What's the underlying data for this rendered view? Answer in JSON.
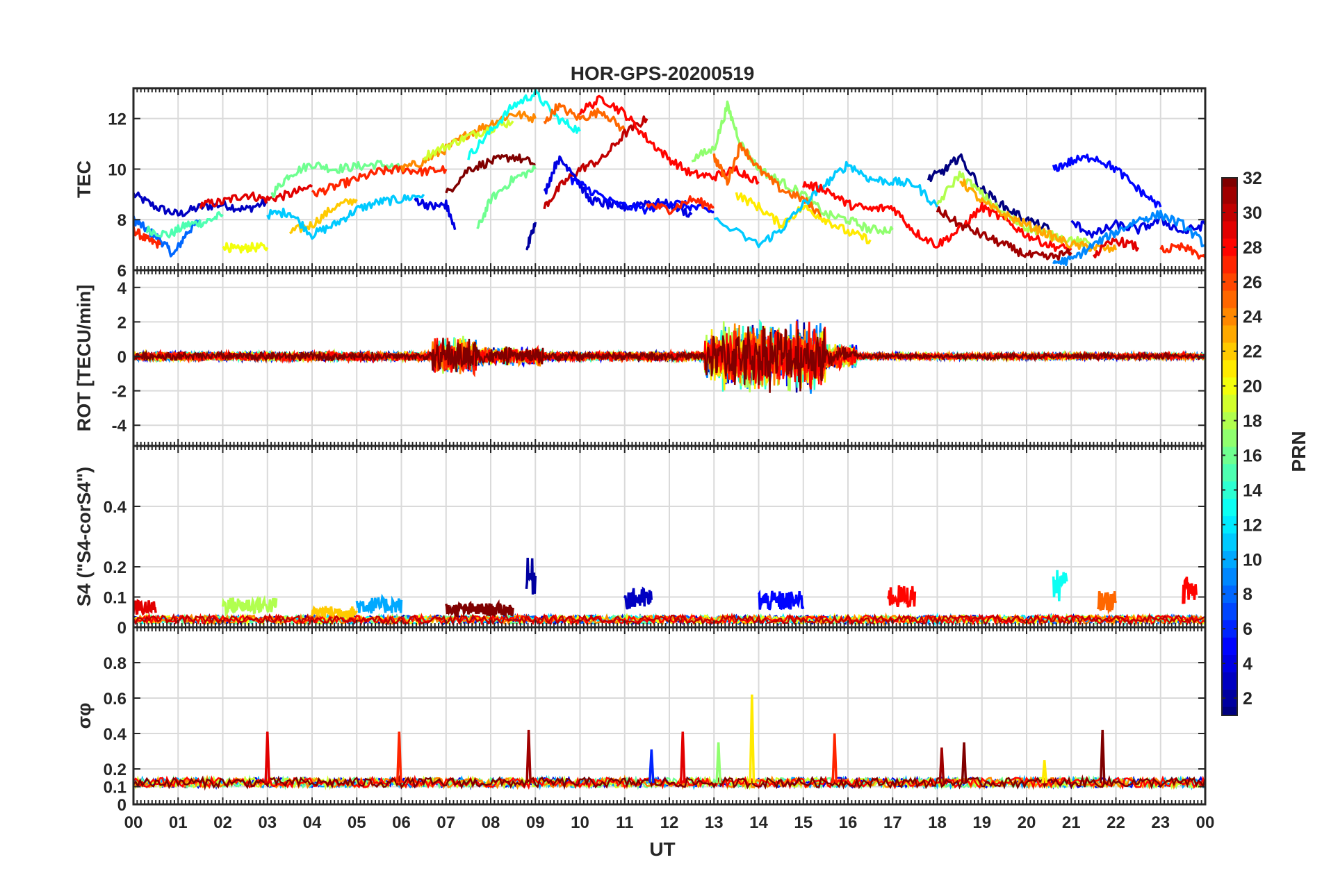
{
  "chart_data": {
    "type": "line",
    "title": "HOR-GPS-20200519",
    "xlabel": "UT",
    "x_range": [
      0,
      24
    ],
    "x_tick_labels": [
      "00",
      "01",
      "02",
      "03",
      "04",
      "05",
      "06",
      "07",
      "08",
      "09",
      "10",
      "11",
      "12",
      "13",
      "14",
      "15",
      "16",
      "17",
      "18",
      "19",
      "20",
      "21",
      "22",
      "23",
      "00"
    ],
    "grid": true,
    "colorbar": {
      "label": "PRN",
      "range": [
        1,
        32
      ],
      "tick_labels": [
        "2",
        "4",
        "6",
        "8",
        "10",
        "12",
        "14",
        "16",
        "18",
        "20",
        "22",
        "24",
        "26",
        "28",
        "30",
        "32"
      ],
      "colormap": "jet",
      "placement": "right"
    },
    "panels": [
      {
        "name": "tec",
        "ylabel": "TEC",
        "ylim": [
          6,
          13.2
        ],
        "y_tick_labels": [
          "6",
          "8",
          "10",
          "12"
        ],
        "series": [
          {
            "prn": 3,
            "x": [
              0,
              0.5,
              1,
              1.5,
              2,
              2.5,
              3
            ],
            "y": [
              9.0,
              8.5,
              8.2,
              8.5,
              8.6,
              8.4,
              8.7
            ]
          },
          {
            "prn": 8,
            "x": [
              0,
              0.3,
              0.6,
              0.9,
              1.2,
              1.5
            ],
            "y": [
              8.0,
              7.6,
              7.2,
              6.6,
              7.5,
              8.0
            ]
          },
          {
            "prn": 15,
            "x": [
              0.3,
              0.8,
              1.2,
              1.6,
              2.0
            ],
            "y": [
              7.6,
              7.4,
              7.8,
              7.9,
              8.2
            ]
          },
          {
            "prn": 27,
            "x": [
              0,
              0.3,
              0.6
            ],
            "y": [
              7.6,
              7.2,
              7.0
            ]
          },
          {
            "prn": 29,
            "x": [
              1.5,
              2,
              2.5,
              3,
              3.5,
              4
            ],
            "y": [
              8.6,
              8.7,
              9.0,
              8.8,
              9.0,
              9.3
            ]
          },
          {
            "prn": 20,
            "x": [
              2,
              2.3,
              2.6,
              3.0
            ],
            "y": [
              7.0,
              6.8,
              6.9,
              6.9
            ]
          },
          {
            "prn": 16,
            "x": [
              3.1,
              3.5,
              4.0,
              4.5,
              5.0,
              5.5,
              6.0
            ],
            "y": [
              9.0,
              9.8,
              10.2,
              10.0,
              10.1,
              10.2,
              10.0
            ]
          },
          {
            "prn": 22,
            "x": [
              3.5,
              4.0,
              4.5,
              5.0
            ],
            "y": [
              7.5,
              7.8,
              8.5,
              8.8
            ]
          },
          {
            "prn": 11,
            "x": [
              3.0,
              3.5,
              4.0,
              4.5,
              5.0,
              5.5,
              6.0,
              6.5
            ],
            "y": [
              8.2,
              8.3,
              7.4,
              7.8,
              8.4,
              8.7,
              8.8,
              9.0
            ]
          },
          {
            "prn": 27,
            "x": [
              4.0,
              4.5,
              5.0,
              5.5,
              6.0,
              6.5,
              7.0
            ],
            "y": [
              9.0,
              9.3,
              9.6,
              9.9,
              10.0,
              9.9,
              10.0
            ]
          },
          {
            "prn": 24,
            "x": [
              6.0,
              6.5,
              7.0,
              7.5,
              8.0,
              8.5,
              9.0
            ],
            "y": [
              10.0,
              10.3,
              10.8,
              11.4,
              11.8,
              12.2,
              12.0
            ]
          },
          {
            "prn": 19,
            "x": [
              6.5,
              7.0,
              7.5,
              8.0,
              8.5
            ],
            "y": [
              10.5,
              10.9,
              11.3,
              11.6,
              11.9
            ]
          },
          {
            "prn": 13,
            "x": [
              7.5,
              8.0,
              8.5,
              9.0,
              9.5,
              10.0
            ],
            "y": [
              10.5,
              11.5,
              12.5,
              13.0,
              12.0,
              11.5
            ]
          },
          {
            "prn": 32,
            "x": [
              7.0,
              7.5,
              8.0,
              8.5,
              9.0
            ],
            "y": [
              9.0,
              10.0,
              10.3,
              10.5,
              10.2
            ]
          },
          {
            "prn": 16,
            "x": [
              7.7,
              8.0,
              8.5,
              9.0
            ],
            "y": [
              7.6,
              8.8,
              9.6,
              10.0
            ]
          },
          {
            "prn": 4,
            "x": [
              6.3,
              6.7,
              7.0,
              7.2
            ],
            "y": [
              8.8,
              8.5,
              8.6,
              7.6
            ]
          },
          {
            "prn": 25,
            "x": [
              9.2,
              9.5,
              10.0,
              10.5,
              11.0
            ],
            "y": [
              11.8,
              12.5,
              12.0,
              12.3,
              11.5
            ]
          },
          {
            "prn": 30,
            "x": [
              9.2,
              9.6,
              10.0,
              10.5,
              11.0,
              11.5
            ],
            "y": [
              8.5,
              9.4,
              10.0,
              10.4,
              11.4,
              12.0
            ]
          },
          {
            "prn": 28,
            "x": [
              10.0,
              10.5,
              11.0,
              11.5,
              12.0,
              12.5,
              13.0,
              13.5,
              14.0
            ],
            "y": [
              12.3,
              12.8,
              12.2,
              11.2,
              10.4,
              9.8,
              9.7,
              10.0,
              9.5
            ]
          },
          {
            "prn": 4,
            "x": [
              9.2,
              9.5,
              9.8,
              10.2,
              10.6,
              11.0,
              11.5,
              12.0,
              12.5
            ],
            "y": [
              9.0,
              10.4,
              10.0,
              8.8,
              8.6,
              8.5,
              8.7,
              8.6,
              8.2
            ]
          },
          {
            "prn": 2,
            "x": [
              8.8,
              9.0
            ],
            "y": [
              6.8,
              7.9
            ]
          },
          {
            "prn": 5,
            "x": [
              9.8,
              10.2,
              10.8,
              11.5,
              12.0,
              12.5,
              13.0
            ],
            "y": [
              9.6,
              9.2,
              8.6,
              8.4,
              8.7,
              8.5,
              8.3
            ]
          },
          {
            "prn": 27,
            "x": [
              11.5,
              12.0,
              12.5,
              13.0
            ],
            "y": [
              8.6,
              8.4,
              8.8,
              8.5
            ]
          },
          {
            "prn": 17,
            "x": [
              12.5,
              13.0,
              13.3,
              13.6,
              14.0,
              14.5,
              15.0,
              15.5,
              16.0,
              16.5,
              17.0
            ],
            "y": [
              10.4,
              10.8,
              12.5,
              11.0,
              10.0,
              9.5,
              9.0,
              8.2,
              8.0,
              7.6,
              7.6
            ]
          },
          {
            "prn": 25,
            "x": [
              13.0,
              13.3,
              13.6,
              14.0,
              14.5,
              15.0,
              15.5
            ],
            "y": [
              10.5,
              9.5,
              11.0,
              10.0,
              9.2,
              8.8,
              8.0
            ]
          },
          {
            "prn": 21,
            "x": [
              13.5,
              14.0,
              14.5,
              15.0,
              15.5,
              16.0,
              16.5
            ],
            "y": [
              9.0,
              8.5,
              7.8,
              8.5,
              8.0,
              7.5,
              7.2
            ]
          },
          {
            "prn": 11,
            "x": [
              13.0,
              14.0,
              14.5,
              15.0,
              15.5,
              16.0,
              16.5,
              17.0,
              17.5,
              18.0
            ],
            "y": [
              8.0,
              7.0,
              7.6,
              8.6,
              9.4,
              10.2,
              9.6,
              9.5,
              9.4,
              8.5
            ]
          },
          {
            "prn": 28,
            "x": [
              15.0,
              15.5,
              16.0,
              16.5,
              17.0,
              17.5,
              18.0,
              18.5,
              19.0,
              19.5,
              20.0,
              20.5,
              21.0
            ],
            "y": [
              9.4,
              9.2,
              8.6,
              8.4,
              8.5,
              7.5,
              7.0,
              7.6,
              8.5,
              8.0,
              7.4,
              7.0,
              6.8
            ]
          },
          {
            "prn": 1,
            "x": [
              17.8,
              18.2,
              18.5,
              19.0,
              19.5,
              20.0,
              20.5
            ],
            "y": [
              9.6,
              10.0,
              10.5,
              9.2,
              8.5,
              8.0,
              7.6
            ]
          },
          {
            "prn": 18,
            "x": [
              18.0,
              18.5,
              19.0,
              19.5,
              20.0,
              20.5,
              21.0,
              21.5
            ],
            "y": [
              8.6,
              9.8,
              9.0,
              8.2,
              7.7,
              7.4,
              7.2,
              7.0
            ]
          },
          {
            "prn": 23,
            "x": [
              18.5,
              19.0,
              19.5,
              20.0,
              20.5,
              21.0,
              21.5,
              22.0
            ],
            "y": [
              9.6,
              8.7,
              8.2,
              7.8,
              7.4,
              7.0,
              6.9,
              6.8
            ]
          },
          {
            "prn": 31,
            "x": [
              18.0,
              18.5,
              19.0,
              19.5,
              20.0,
              20.5,
              21.0
            ],
            "y": [
              8.4,
              7.8,
              7.4,
              7.0,
              6.6,
              6.5,
              6.7
            ]
          },
          {
            "prn": 5,
            "x": [
              20.6,
              21.0,
              21.5,
              22.0,
              22.5,
              23.0
            ],
            "y": [
              10.0,
              10.3,
              10.5,
              10.0,
              9.2,
              8.5
            ]
          },
          {
            "prn": 4,
            "x": [
              21.0,
              21.5,
              22.0,
              22.5,
              23.0,
              23.5,
              24.0
            ],
            "y": [
              7.9,
              7.4,
              7.8,
              7.6,
              8.0,
              7.5,
              7.8
            ]
          },
          {
            "prn": 9,
            "x": [
              20.6,
              21.0,
              21.5,
              22.0,
              22.5,
              23.0,
              23.5,
              24.0
            ],
            "y": [
              6.3,
              6.4,
              7.0,
              7.5,
              8.0,
              8.2,
              7.8,
              7.0
            ]
          },
          {
            "prn": 29,
            "x": [
              21.5,
              22.0,
              22.5
            ],
            "y": [
              6.6,
              7.2,
              6.9
            ]
          },
          {
            "prn": 27,
            "x": [
              23.0,
              23.5,
              24.0
            ],
            "y": [
              6.8,
              6.9,
              6.5
            ]
          }
        ]
      },
      {
        "name": "rot",
        "ylabel": "ROT [TECU/min]",
        "ylim": [
          -5.2,
          5
        ],
        "y_tick_labels": [
          "-4",
          "-2",
          "0",
          "2",
          "4"
        ],
        "bands": [
          {
            "x": [
              0,
              6.7
            ],
            "amplitude": 0.3
          },
          {
            "x": [
              6.7,
              7.7
            ],
            "amplitude": 1.2
          },
          {
            "x": [
              7.7,
              9.2
            ],
            "amplitude": 0.6
          },
          {
            "x": [
              9.2,
              12.8
            ],
            "amplitude": 0.3
          },
          {
            "x": [
              12.8,
              13.2
            ],
            "amplitude": 1.6
          },
          {
            "x": [
              13.2,
              15.5
            ],
            "amplitude": 2.2
          },
          {
            "x": [
              15.5,
              16.2
            ],
            "amplitude": 0.8
          },
          {
            "x": [
              16.2,
              24
            ],
            "amplitude": 0.2
          }
        ]
      },
      {
        "name": "s4",
        "ylabel": "S4 (\"S4-corS4\")",
        "ylim": [
          0,
          0.6
        ],
        "y_tick_labels": [
          "0",
          "0.1",
          "0.2",
          "0.4"
        ],
        "baseline": 0.03,
        "bursts": [
          {
            "prn": 29,
            "x": [
              0,
              0.5
            ],
            "peak": 0.09
          },
          {
            "prn": 18,
            "x": [
              2.0,
              3.2
            ],
            "peak": 0.1
          },
          {
            "prn": 22,
            "x": [
              4.0,
              5.0
            ],
            "peak": 0.07
          },
          {
            "prn": 10,
            "x": [
              5.0,
              6.0
            ],
            "peak": 0.1
          },
          {
            "prn": 32,
            "x": [
              7.0,
              8.5
            ],
            "peak": 0.08
          },
          {
            "prn": 2,
            "x": [
              8.8,
              9.0
            ],
            "peak": 0.23
          },
          {
            "prn": 3,
            "x": [
              11.0,
              11.6
            ],
            "peak": 0.13
          },
          {
            "prn": 5,
            "x": [
              14.0,
              15.0
            ],
            "peak": 0.12
          },
          {
            "prn": 28,
            "x": [
              16.9,
              17.5
            ],
            "peak": 0.14
          },
          {
            "prn": 13,
            "x": [
              20.6,
              20.9
            ],
            "peak": 0.19
          },
          {
            "prn": 25,
            "x": [
              21.6,
              22.0
            ],
            "peak": 0.12
          },
          {
            "prn": 28,
            "x": [
              23.5,
              23.8
            ],
            "peak": 0.17
          }
        ]
      },
      {
        "name": "sigma_phi",
        "ylabel": "σφ",
        "ylim": [
          0,
          1.0
        ],
        "y_tick_labels": [
          "0",
          "0.1",
          "0.2",
          "0.4",
          "0.6",
          "0.8"
        ],
        "baseline": 0.12,
        "spikes": [
          {
            "prn": 29,
            "x": 3.0,
            "peak": 0.41
          },
          {
            "prn": 27,
            "x": 5.95,
            "peak": 0.41
          },
          {
            "prn": 31,
            "x": 8.85,
            "peak": 0.42
          },
          {
            "prn": 6,
            "x": 11.6,
            "peak": 0.31
          },
          {
            "prn": 29,
            "x": 12.3,
            "peak": 0.41
          },
          {
            "prn": 17,
            "x": 13.1,
            "peak": 0.35
          },
          {
            "prn": 21,
            "x": 13.85,
            "peak": 0.62
          },
          {
            "prn": 27,
            "x": 15.7,
            "peak": 0.4
          },
          {
            "prn": 31,
            "x": 18.1,
            "peak": 0.32
          },
          {
            "prn": 32,
            "x": 18.6,
            "peak": 0.35
          },
          {
            "prn": 21,
            "x": 20.4,
            "peak": 0.25
          },
          {
            "prn": 32,
            "x": 21.7,
            "peak": 0.42
          }
        ]
      }
    ]
  }
}
